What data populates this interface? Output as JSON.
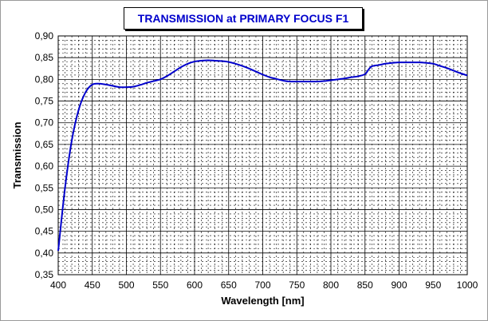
{
  "chart_data": {
    "type": "line",
    "title": "TRANSMISSION at PRIMARY FOCUS F1",
    "xlabel": "Wavelength [nm]",
    "ylabel": "Transmission",
    "xlim": [
      400,
      1000
    ],
    "ylim": [
      0.35,
      0.9
    ],
    "x_ticks": [
      400,
      450,
      500,
      550,
      600,
      650,
      700,
      750,
      800,
      850,
      900,
      950,
      1000
    ],
    "y_ticks": [
      "0,35",
      "0,40",
      "0,45",
      "0,50",
      "0,55",
      "0,60",
      "0,65",
      "0,70",
      "0,75",
      "0,80",
      "0,85",
      "0,90"
    ],
    "y_tick_values": [
      0.35,
      0.4,
      0.45,
      0.5,
      0.55,
      0.6,
      0.65,
      0.7,
      0.75,
      0.8,
      0.85,
      0.9
    ],
    "grid": "major solid, minor dashed",
    "line_color": "#0000cc",
    "series": [
      {
        "x": [
          400,
          410,
          420,
          430,
          440,
          450,
          460,
          470,
          480,
          490,
          500,
          510,
          520,
          530,
          540,
          550,
          560,
          570,
          580,
          590,
          600,
          610,
          620,
          630,
          640,
          650,
          660,
          670,
          680,
          690,
          700,
          710,
          720,
          730,
          740,
          750,
          760,
          770,
          780,
          790,
          800,
          810,
          820,
          830,
          840,
          850,
          855,
          860,
          870,
          880,
          890,
          900,
          910,
          920,
          930,
          940,
          950,
          960,
          970,
          980,
          990,
          1000
        ],
        "y": [
          0.405,
          0.55,
          0.66,
          0.73,
          0.77,
          0.788,
          0.79,
          0.788,
          0.785,
          0.782,
          0.782,
          0.783,
          0.787,
          0.792,
          0.796,
          0.8,
          0.808,
          0.818,
          0.828,
          0.836,
          0.841,
          0.843,
          0.844,
          0.843,
          0.842,
          0.84,
          0.836,
          0.831,
          0.825,
          0.818,
          0.811,
          0.805,
          0.801,
          0.797,
          0.795,
          0.795,
          0.795,
          0.795,
          0.795,
          0.796,
          0.798,
          0.8,
          0.802,
          0.805,
          0.807,
          0.812,
          0.822,
          0.83,
          0.833,
          0.836,
          0.838,
          0.839,
          0.839,
          0.839,
          0.839,
          0.838,
          0.836,
          0.831,
          0.826,
          0.82,
          0.814,
          0.809
        ]
      }
    ]
  }
}
